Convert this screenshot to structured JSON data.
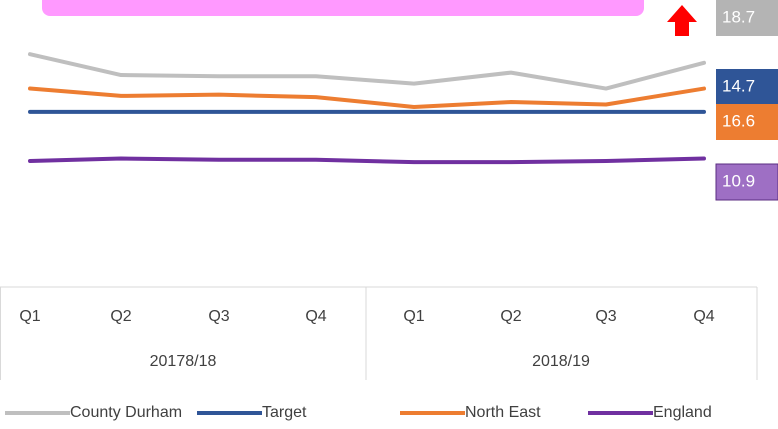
{
  "chart_data": {
    "type": "line",
    "categories": [
      "Q1",
      "Q2",
      "Q3",
      "Q4",
      "Q1",
      "Q2",
      "Q3",
      "Q4"
    ],
    "groups": [
      "20178/18",
      "2018/19"
    ],
    "ylim": [
      1,
      23
    ],
    "series": [
      {
        "name": "County Durham",
        "color": "#bfbfbf",
        "label_color": "#b4b4b4",
        "values": [
          19.4,
          17.7,
          17.6,
          17.6,
          17.0,
          17.9,
          16.6,
          18.7
        ]
      },
      {
        "name": "Target",
        "color": "#2f5597",
        "label_color": "#2f5597",
        "values": [
          14.7,
          14.7,
          14.7,
          14.7,
          14.7,
          14.7,
          14.7,
          14.7
        ]
      },
      {
        "name": "North East",
        "color": "#ed7d31",
        "label_color": "#ed7d31",
        "values": [
          16.6,
          16.0,
          16.1,
          15.9,
          15.1,
          15.5,
          15.3,
          16.6
        ]
      },
      {
        "name": "England",
        "color": "#7030a0",
        "label_color": "#9e6fc4",
        "values": [
          10.7,
          10.9,
          10.8,
          10.8,
          10.6,
          10.6,
          10.7,
          10.9
        ]
      }
    ]
  }
}
